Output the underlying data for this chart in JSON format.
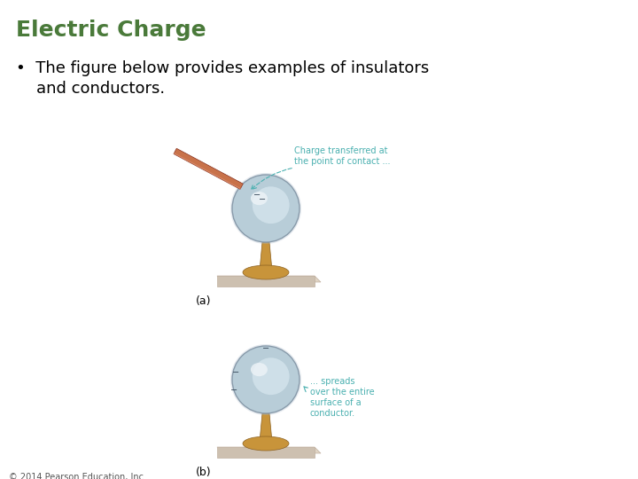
{
  "title": "Electric Charge",
  "title_color": "#4a7a3a",
  "title_fontsize": 18,
  "bullet_text_line1": "•  The figure below provides examples of insulators",
  "bullet_text_line2": "    and conductors.",
  "bullet_fontsize": 13,
  "label_a": "(a)",
  "label_b": "(b)",
  "copyright": "© 2014 Pearson Education, Inc.",
  "copyright_fontsize": 7,
  "annotation1_line1": "Charge transferred at",
  "annotation1_line2": "the point of contact ...",
  "annotation2_line1": "... spreads",
  "annotation2_line2": "over the entire",
  "annotation2_line3": "surface of a",
  "annotation2_line4": "conductor.",
  "annotation_color": "#4ab0b0",
  "background_color": "#ffffff",
  "sphere_color_outer": "#b8cdd8",
  "sphere_color_inner": "#d8e8f0",
  "sphere_highlight": "#eef4f8",
  "sphere_edge": "#889aaa",
  "stand_color": "#c8943a",
  "stand_edge": "#8b6020",
  "base_platform_color": "#e0d4c4",
  "base_platform_edge": "#c0b0a0",
  "base_disc_color": "#c8943a",
  "rod_color": "#c8724a",
  "rod_edge": "#904030",
  "minus_color": "#334455"
}
